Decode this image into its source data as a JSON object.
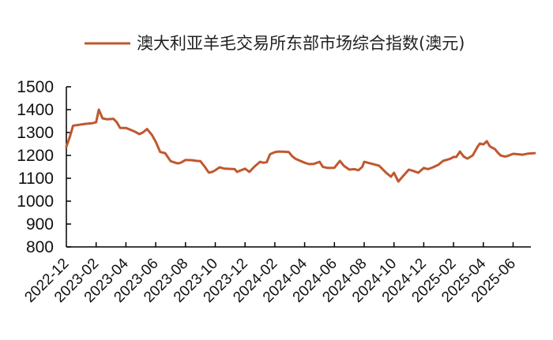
{
  "chart_data": {
    "type": "line",
    "title": "",
    "xlabel": "",
    "ylabel": "",
    "legend": {
      "position": "top",
      "entries": [
        "澳大利亚羊毛交易所东部市场综合指数(澳元)"
      ]
    },
    "ylim": [
      800,
      1500
    ],
    "yticks": [
      800,
      900,
      1000,
      1100,
      1200,
      1300,
      1400,
      1500
    ],
    "xticks": [
      "2022-12",
      "2023-02",
      "2023-04",
      "2023-06",
      "2023-08",
      "2023-10",
      "2023-12",
      "2024-02",
      "2024-04",
      "2024-06",
      "2024-08",
      "2024-10",
      "2024-12",
      "2025-02",
      "2025-04",
      "2025-06"
    ],
    "grid": false,
    "series": [
      {
        "name": "澳大利亚羊毛交易所东部市场综合指数(澳元)",
        "color": "#C0582E",
        "x": [
          "2022-12-01",
          "2022-12-08",
          "2022-12-15",
          "2023-01-10",
          "2023-01-25",
          "2023-02-01",
          "2023-02-06",
          "2023-02-13",
          "2023-02-21",
          "2023-03-06",
          "2023-03-13",
          "2023-03-20",
          "2023-04-01",
          "2023-04-10",
          "2023-04-18",
          "2023-04-28",
          "2023-05-05",
          "2023-05-14",
          "2023-05-24",
          "2023-06-01",
          "2023-06-10",
          "2023-06-20",
          "2023-07-01",
          "2023-07-15",
          "2023-07-22",
          "2023-08-01",
          "2023-08-15",
          "2023-08-25",
          "2023-09-01",
          "2023-09-10",
          "2023-09-18",
          "2023-09-25",
          "2023-10-01",
          "2023-10-10",
          "2023-10-20",
          "2023-11-10",
          "2023-11-15",
          "2023-12-01",
          "2023-12-10",
          "2023-12-20",
          "2024-01-01",
          "2024-01-08",
          "2024-01-15",
          "2024-01-22",
          "2024-02-01",
          "2024-02-08",
          "2024-02-20",
          "2024-02-28",
          "2024-03-06",
          "2024-03-13",
          "2024-04-01",
          "2024-04-10",
          "2024-04-20",
          "2024-05-01",
          "2024-05-08",
          "2024-05-18",
          "2024-06-01",
          "2024-06-12",
          "2024-06-20",
          "2024-07-01",
          "2024-07-12",
          "2024-07-20",
          "2024-07-28",
          "2024-08-01",
          "2024-09-01",
          "2024-09-15",
          "2024-09-25",
          "2024-10-01",
          "2024-10-10",
          "2024-10-20",
          "2024-11-01",
          "2024-11-10",
          "2024-11-20",
          "2024-12-01",
          "2024-12-10",
          "2024-12-20",
          "2025-01-01",
          "2025-01-10",
          "2025-01-25",
          "2025-02-01",
          "2025-02-06",
          "2025-02-13",
          "2025-02-20",
          "2025-02-27",
          "2025-03-10",
          "2025-03-20",
          "2025-03-25",
          "2025-04-01",
          "2025-04-08",
          "2025-04-14",
          "2025-04-24",
          "2025-05-01",
          "2025-05-06",
          "2025-05-14",
          "2025-05-20",
          "2025-06-01",
          "2025-06-10",
          "2025-06-20",
          "2025-07-01",
          "2025-07-15"
        ],
        "values": [
          1238,
          1280,
          1330,
          1338,
          1341,
          1345,
          1400,
          1362,
          1358,
          1360,
          1345,
          1320,
          1320,
          1312,
          1305,
          1293,
          1300,
          1315,
          1290,
          1260,
          1215,
          1210,
          1175,
          1165,
          1168,
          1180,
          1179,
          1176,
          1175,
          1150,
          1125,
          1128,
          1135,
          1148,
          1142,
          1140,
          1128,
          1142,
          1128,
          1150,
          1172,
          1168,
          1170,
          1205,
          1214,
          1217,
          1216,
          1215,
          1197,
          1185,
          1168,
          1162,
          1163,
          1172,
          1150,
          1145,
          1146,
          1176,
          1155,
          1138,
          1140,
          1135,
          1150,
          1172,
          1155,
          1125,
          1107,
          1124,
          1086,
          1110,
          1138,
          1132,
          1124,
          1145,
          1140,
          1148,
          1160,
          1176,
          1185,
          1193,
          1193,
          1217,
          1195,
          1186,
          1200,
          1238,
          1252,
          1248,
          1262,
          1240,
          1228,
          1210,
          1200,
          1195,
          1197,
          1207,
          1205,
          1203,
          1208,
          1210
        ]
      }
    ]
  },
  "legend_label": "澳大利亚羊毛交易所东部市场综合指数(澳元)",
  "axes": {
    "y_labels": [
      "1500",
      "1400",
      "1300",
      "1200",
      "1100",
      "1000",
      "900",
      "800"
    ],
    "x_labels": [
      "2022-12",
      "2023-02",
      "2023-04",
      "2023-06",
      "2023-08",
      "2023-10",
      "2023-12",
      "2024-02",
      "2024-04",
      "2024-06",
      "2024-08",
      "2024-10",
      "2024-12",
      "2025-02",
      "2025-04",
      "2025-06"
    ]
  },
  "colors": {
    "line": "#C0582E",
    "axis": "#000000",
    "text": "#111111"
  }
}
